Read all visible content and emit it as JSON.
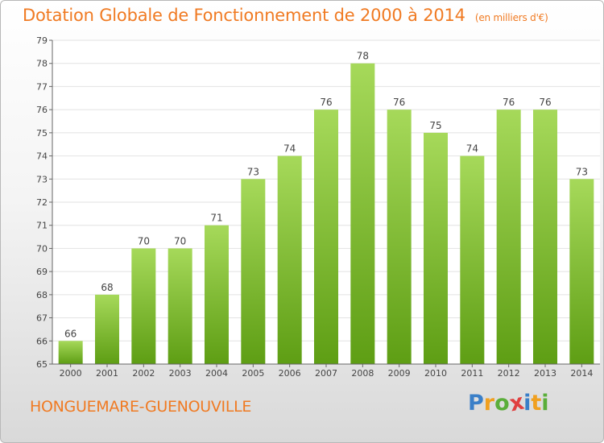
{
  "title": "Dotation Globale de Fonctionnement de 2000 à 2014",
  "subtitle": "(en milliers d'€)",
  "commune": "HONGUEMARE-GUENOUVILLE",
  "logo": {
    "letters": [
      "P",
      "r",
      "o",
      "x",
      "i",
      "t",
      "i"
    ],
    "colors": [
      "#3a7fc8",
      "#f0a020",
      "#5aae3a",
      "#e04040",
      "#3a7fc8",
      "#f0a020",
      "#5aae3a"
    ]
  },
  "colors": {
    "bar_top": "#a6d95a",
    "bar_bottom": "#5e9e14",
    "grid": "#e2e2e2",
    "axis": "#666666",
    "label": "#444444",
    "accent": "#f07a22"
  },
  "chart_data": {
    "type": "bar",
    "categories": [
      "2000",
      "2001",
      "2002",
      "2003",
      "2004",
      "2005",
      "2006",
      "2007",
      "2008",
      "2009",
      "2010",
      "2011",
      "2012",
      "2013",
      "2014"
    ],
    "values": [
      66,
      68,
      70,
      70,
      71,
      73,
      74,
      76,
      78,
      76,
      75,
      74,
      76,
      76,
      73
    ],
    "ylim": [
      65,
      79
    ],
    "yticks": [
      65,
      66,
      67,
      68,
      69,
      70,
      71,
      72,
      73,
      74,
      75,
      76,
      77,
      78,
      79
    ],
    "xlabel": "",
    "ylabel": "",
    "grid": true,
    "data_labels": true
  }
}
